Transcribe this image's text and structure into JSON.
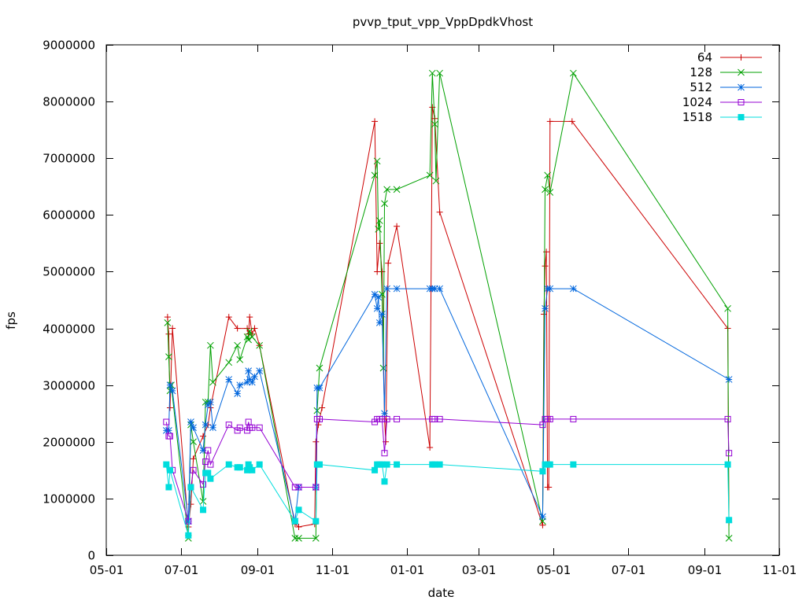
{
  "chart_data": {
    "type": "line",
    "title": "pvvp_tput_vpp_VppDpdkVhost",
    "xlabel": "date",
    "ylabel": "fps",
    "ylim": [
      0,
      9000000
    ],
    "xlim": [
      "2016-05-01",
      "2017-11-01"
    ],
    "x_ticks": [
      {
        "date": "2016-05-01",
        "label": "05-01"
      },
      {
        "date": "2016-07-01",
        "label": "07-01"
      },
      {
        "date": "2016-09-01",
        "label": "09-01"
      },
      {
        "date": "2016-11-01",
        "label": "11-01"
      },
      {
        "date": "2017-01-01",
        "label": "01-01"
      },
      {
        "date": "2017-03-01",
        "label": "03-01"
      },
      {
        "date": "2017-05-01",
        "label": "05-01"
      },
      {
        "date": "2017-07-01",
        "label": "07-01"
      },
      {
        "date": "2017-09-01",
        "label": "09-01"
      },
      {
        "date": "2017-11-01",
        "label": "11-01"
      }
    ],
    "y_ticks": [
      0,
      1000000,
      2000000,
      3000000,
      4000000,
      5000000,
      6000000,
      7000000,
      8000000,
      9000000
    ],
    "y_tick_labels": [
      "0",
      "1000000",
      "2000000",
      "3000000",
      "4000000",
      "5000000",
      "6000000",
      "7000000",
      "8000000",
      "9000000"
    ],
    "grid": false,
    "legend_position": "top-right",
    "series": [
      {
        "name": "64",
        "color": "#cc0000",
        "marker": "plus",
        "points": [
          [
            "2016-06-20",
            4200000
          ],
          [
            "2016-06-21",
            3900000
          ],
          [
            "2016-06-22",
            2600000
          ],
          [
            "2016-06-24",
            4000000
          ],
          [
            "2016-07-07",
            500000
          ],
          [
            "2016-07-09",
            900000
          ],
          [
            "2016-07-11",
            1700000
          ],
          [
            "2016-07-19",
            2100000
          ],
          [
            "2016-07-23",
            2300000
          ],
          [
            "2016-07-25",
            2600000
          ],
          [
            "2016-08-09",
            4200000
          ],
          [
            "2016-08-16",
            4000000
          ],
          [
            "2016-08-24",
            4000000
          ],
          [
            "2016-08-25",
            3900000
          ],
          [
            "2016-08-26",
            4200000
          ],
          [
            "2016-08-28",
            3900000
          ],
          [
            "2016-08-30",
            4000000
          ],
          [
            "2016-09-03",
            3700000
          ],
          [
            "2016-10-02",
            550000
          ],
          [
            "2016-10-05",
            500000
          ],
          [
            "2016-10-18",
            550000
          ],
          [
            "2016-10-19",
            2000000
          ],
          [
            "2016-10-21",
            2300000
          ],
          [
            "2016-10-24",
            2600000
          ],
          [
            "2016-12-06",
            7650000
          ],
          [
            "2016-12-08",
            5000000
          ],
          [
            "2016-12-10",
            5500000
          ],
          [
            "2016-12-12",
            5000000
          ],
          [
            "2016-12-14",
            2400000
          ],
          [
            "2016-12-15",
            2000000
          ],
          [
            "2016-12-17",
            5150000
          ],
          [
            "2016-12-24",
            5800000
          ],
          [
            "2017-01-20",
            1900000
          ],
          [
            "2017-01-22",
            7900000
          ],
          [
            "2017-01-24",
            7700000
          ],
          [
            "2017-01-28",
            6050000
          ],
          [
            "2017-04-22",
            530000
          ],
          [
            "2017-04-23",
            4250000
          ],
          [
            "2017-04-24",
            5100000
          ],
          [
            "2017-04-25",
            5350000
          ],
          [
            "2017-04-26",
            1200000
          ],
          [
            "2017-04-27",
            1200000
          ],
          [
            "2017-04-28",
            7650000
          ],
          [
            "2017-05-16",
            7650000
          ],
          [
            "2017-09-20",
            4000000
          ],
          [
            "2017-09-21",
            580000
          ]
        ]
      },
      {
        "name": "128",
        "color": "#00a000",
        "marker": "cross",
        "points": [
          [
            "2016-06-20",
            4100000
          ],
          [
            "2016-06-21",
            3500000
          ],
          [
            "2016-06-22",
            2900000
          ],
          [
            "2016-06-23",
            3000000
          ],
          [
            "2016-07-07",
            300000
          ],
          [
            "2016-07-09",
            2300000
          ],
          [
            "2016-07-11",
            2000000
          ],
          [
            "2016-07-19",
            950000
          ],
          [
            "2016-07-21",
            2700000
          ],
          [
            "2016-07-23",
            2700000
          ],
          [
            "2016-07-25",
            3700000
          ],
          [
            "2016-07-27",
            3050000
          ],
          [
            "2016-08-09",
            3400000
          ],
          [
            "2016-08-16",
            3700000
          ],
          [
            "2016-08-18",
            3450000
          ],
          [
            "2016-08-24",
            3850000
          ],
          [
            "2016-08-25",
            3800000
          ],
          [
            "2016-08-26",
            3950000
          ],
          [
            "2016-08-28",
            3850000
          ],
          [
            "2016-09-03",
            3700000
          ],
          [
            "2016-10-02",
            300000
          ],
          [
            "2016-10-05",
            300000
          ],
          [
            "2016-10-19",
            300000
          ],
          [
            "2016-10-20",
            2550000
          ],
          [
            "2016-10-22",
            3300000
          ],
          [
            "2016-12-06",
            6700000
          ],
          [
            "2016-12-08",
            6950000
          ],
          [
            "2016-12-09",
            5750000
          ],
          [
            "2016-12-10",
            5900000
          ],
          [
            "2016-12-12",
            4600000
          ],
          [
            "2016-12-13",
            3300000
          ],
          [
            "2016-12-14",
            6200000
          ],
          [
            "2016-12-16",
            6450000
          ],
          [
            "2016-12-24",
            6450000
          ],
          [
            "2017-01-20",
            6700000
          ],
          [
            "2017-01-22",
            8500000
          ],
          [
            "2017-01-24",
            7600000
          ],
          [
            "2017-01-25",
            6600000
          ],
          [
            "2017-01-28",
            8500000
          ],
          [
            "2017-04-22",
            600000
          ],
          [
            "2017-04-24",
            6450000
          ],
          [
            "2017-04-26",
            6700000
          ],
          [
            "2017-04-28",
            6400000
          ],
          [
            "2017-05-17",
            8500000
          ],
          [
            "2017-09-20",
            4350000
          ],
          [
            "2017-09-21",
            300000
          ]
        ]
      },
      {
        "name": "512",
        "color": "#0066dd",
        "marker": "star",
        "points": [
          [
            "2016-06-19",
            2200000
          ],
          [
            "2016-06-21",
            2200000
          ],
          [
            "2016-06-22",
            3000000
          ],
          [
            "2016-06-24",
            2900000
          ],
          [
            "2016-07-07",
            600000
          ],
          [
            "2016-07-09",
            2350000
          ],
          [
            "2016-07-11",
            2250000
          ],
          [
            "2016-07-19",
            1850000
          ],
          [
            "2016-07-21",
            2300000
          ],
          [
            "2016-07-23",
            2650000
          ],
          [
            "2016-07-25",
            2700000
          ],
          [
            "2016-07-27",
            2250000
          ],
          [
            "2016-08-09",
            3100000
          ],
          [
            "2016-08-16",
            2850000
          ],
          [
            "2016-08-18",
            3000000
          ],
          [
            "2016-08-24",
            3050000
          ],
          [
            "2016-08-25",
            3250000
          ],
          [
            "2016-08-26",
            3100000
          ],
          [
            "2016-08-28",
            3050000
          ],
          [
            "2016-08-30",
            3150000
          ],
          [
            "2016-09-03",
            3250000
          ],
          [
            "2016-10-02",
            600000
          ],
          [
            "2016-10-05",
            1200000
          ],
          [
            "2016-10-19",
            1200000
          ],
          [
            "2016-10-20",
            2950000
          ],
          [
            "2016-10-22",
            2950000
          ],
          [
            "2016-12-06",
            4600000
          ],
          [
            "2016-12-08",
            4350000
          ],
          [
            "2016-12-09",
            4550000
          ],
          [
            "2016-12-10",
            4100000
          ],
          [
            "2016-12-12",
            4250000
          ],
          [
            "2016-12-14",
            2500000
          ],
          [
            "2016-12-16",
            4700000
          ],
          [
            "2016-12-24",
            4700000
          ],
          [
            "2017-01-20",
            4700000
          ],
          [
            "2017-01-22",
            4700000
          ],
          [
            "2017-01-24",
            4700000
          ],
          [
            "2017-01-28",
            4700000
          ],
          [
            "2017-04-22",
            680000
          ],
          [
            "2017-04-24",
            4350000
          ],
          [
            "2017-04-26",
            4700000
          ],
          [
            "2017-04-28",
            4700000
          ],
          [
            "2017-05-17",
            4700000
          ],
          [
            "2017-09-21",
            3100000
          ]
        ]
      },
      {
        "name": "1024",
        "color": "#9400d3",
        "marker": "square",
        "points": [
          [
            "2016-06-19",
            2350000
          ],
          [
            "2016-06-21",
            2100000
          ],
          [
            "2016-06-22",
            2100000
          ],
          [
            "2016-06-24",
            1500000
          ],
          [
            "2016-07-07",
            600000
          ],
          [
            "2016-07-09",
            1200000
          ],
          [
            "2016-07-11",
            1500000
          ],
          [
            "2016-07-19",
            1250000
          ],
          [
            "2016-07-21",
            1650000
          ],
          [
            "2016-07-23",
            1850000
          ],
          [
            "2016-07-25",
            1600000
          ],
          [
            "2016-08-09",
            2300000
          ],
          [
            "2016-08-16",
            2200000
          ],
          [
            "2016-08-18",
            2250000
          ],
          [
            "2016-08-24",
            2200000
          ],
          [
            "2016-08-25",
            2350000
          ],
          [
            "2016-08-26",
            2250000
          ],
          [
            "2016-08-28",
            2250000
          ],
          [
            "2016-09-03",
            2250000
          ],
          [
            "2016-10-02",
            1200000
          ],
          [
            "2016-10-05",
            1200000
          ],
          [
            "2016-10-19",
            1200000
          ],
          [
            "2016-10-20",
            2400000
          ],
          [
            "2016-10-22",
            2400000
          ],
          [
            "2016-12-06",
            2350000
          ],
          [
            "2016-12-08",
            2400000
          ],
          [
            "2016-12-10",
            2400000
          ],
          [
            "2016-12-12",
            2400000
          ],
          [
            "2016-12-14",
            1800000
          ],
          [
            "2016-12-16",
            2400000
          ],
          [
            "2016-12-24",
            2400000
          ],
          [
            "2017-01-22",
            2400000
          ],
          [
            "2017-01-24",
            2400000
          ],
          [
            "2017-01-28",
            2400000
          ],
          [
            "2017-04-22",
            2300000
          ],
          [
            "2017-04-24",
            2400000
          ],
          [
            "2017-04-26",
            2400000
          ],
          [
            "2017-04-28",
            2400000
          ],
          [
            "2017-05-17",
            2400000
          ],
          [
            "2017-09-20",
            2400000
          ],
          [
            "2017-09-21",
            1800000
          ]
        ]
      },
      {
        "name": "1518",
        "color": "#00dddd",
        "marker": "filled-square",
        "points": [
          [
            "2016-06-19",
            1600000
          ],
          [
            "2016-06-21",
            1200000
          ],
          [
            "2016-06-22",
            1500000
          ],
          [
            "2016-07-07",
            350000
          ],
          [
            "2016-07-09",
            1200000
          ],
          [
            "2016-07-19",
            800000
          ],
          [
            "2016-07-21",
            1450000
          ],
          [
            "2016-07-23",
            1450000
          ],
          [
            "2016-07-25",
            1350000
          ],
          [
            "2016-08-09",
            1600000
          ],
          [
            "2016-08-16",
            1550000
          ],
          [
            "2016-08-18",
            1550000
          ],
          [
            "2016-08-24",
            1500000
          ],
          [
            "2016-08-25",
            1600000
          ],
          [
            "2016-08-26",
            1550000
          ],
          [
            "2016-08-28",
            1500000
          ],
          [
            "2016-09-03",
            1600000
          ],
          [
            "2016-10-02",
            600000
          ],
          [
            "2016-10-05",
            800000
          ],
          [
            "2016-10-19",
            600000
          ],
          [
            "2016-10-20",
            1600000
          ],
          [
            "2016-10-22",
            1600000
          ],
          [
            "2016-12-06",
            1500000
          ],
          [
            "2016-12-08",
            1600000
          ],
          [
            "2016-12-10",
            1600000
          ],
          [
            "2016-12-12",
            1600000
          ],
          [
            "2016-12-14",
            1300000
          ],
          [
            "2016-12-16",
            1600000
          ],
          [
            "2016-12-24",
            1600000
          ],
          [
            "2017-01-22",
            1600000
          ],
          [
            "2017-01-24",
            1600000
          ],
          [
            "2017-01-28",
            1600000
          ],
          [
            "2017-04-22",
            1480000
          ],
          [
            "2017-04-24",
            1600000
          ],
          [
            "2017-04-26",
            1600000
          ],
          [
            "2017-04-28",
            1600000
          ],
          [
            "2017-05-17",
            1600000
          ],
          [
            "2017-09-20",
            1600000
          ],
          [
            "2017-09-21",
            620000
          ]
        ]
      }
    ]
  }
}
